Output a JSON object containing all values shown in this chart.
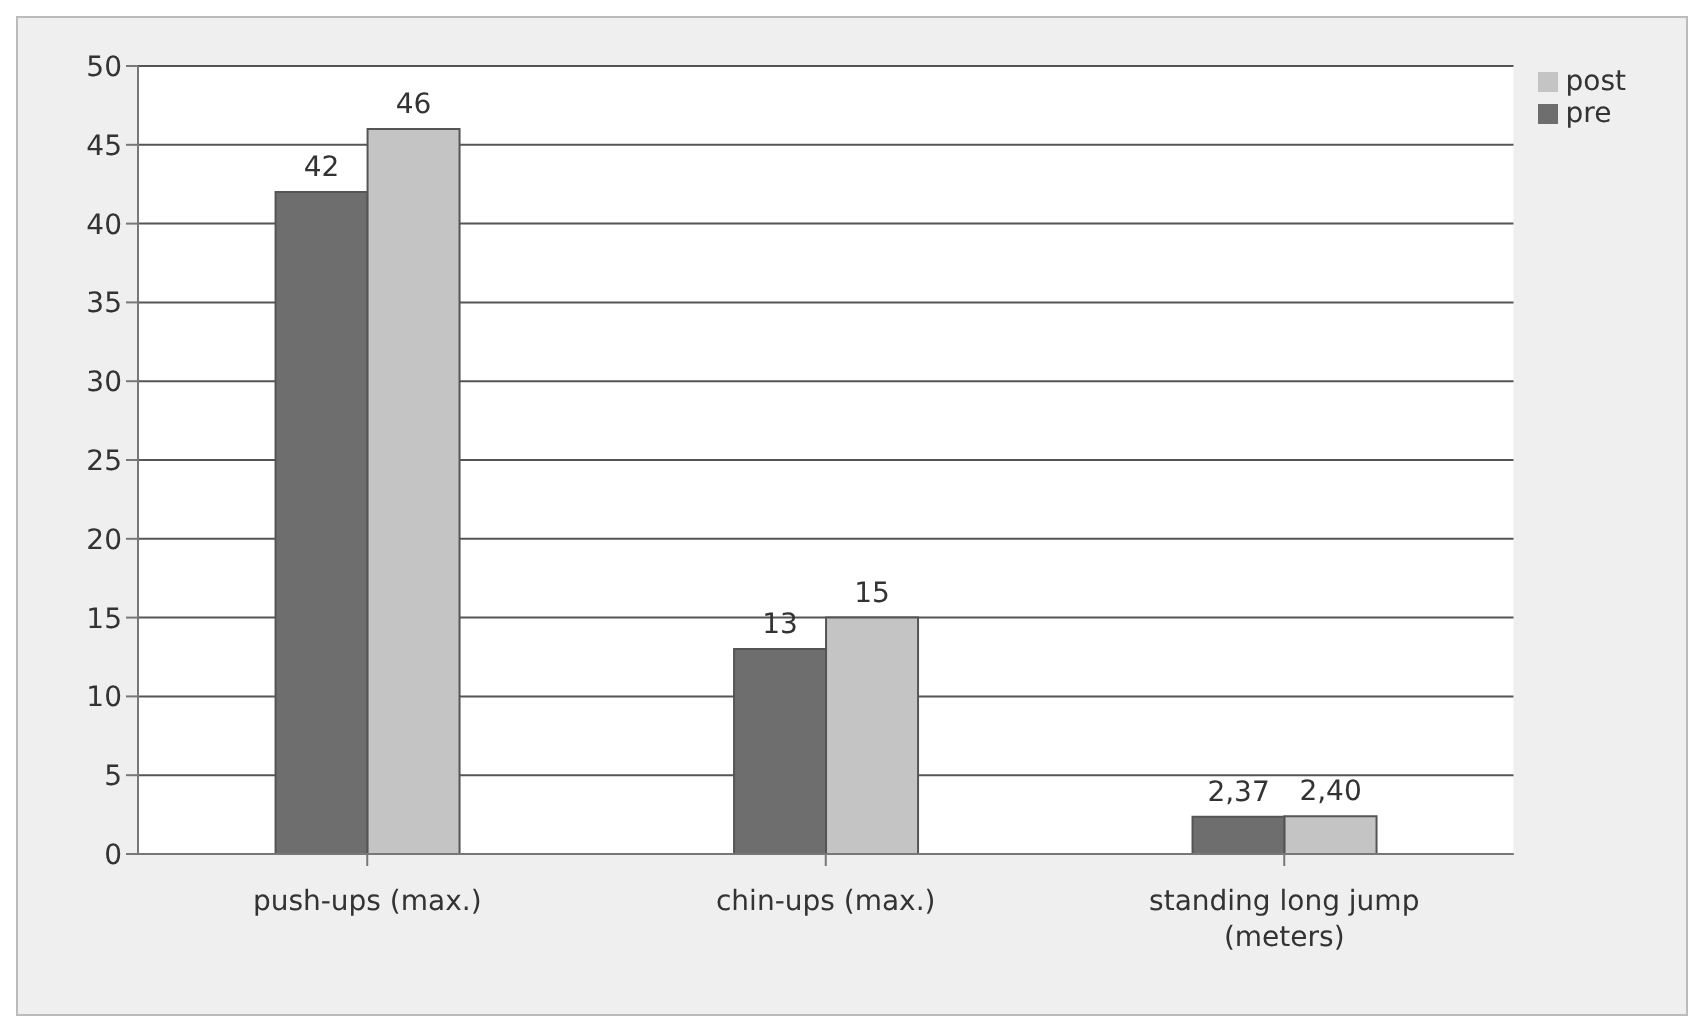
{
  "chart_data": {
    "type": "bar",
    "categories": [
      "push-ups (max.)",
      "chin-ups (max.)",
      "standing long jump (meters)"
    ],
    "series": [
      {
        "name": "pre",
        "color": "#6e6e6e",
        "values": [
          42,
          13,
          2.37
        ],
        "value_labels": [
          "42",
          "13",
          "2,37"
        ]
      },
      {
        "name": "post",
        "color": "#c4c4c4",
        "values": [
          46,
          15,
          2.4
        ],
        "value_labels": [
          "46",
          "15",
          "2,40"
        ]
      }
    ],
    "ylim": [
      0,
      50
    ],
    "yticks": [
      0,
      5,
      10,
      15,
      20,
      25,
      30,
      35,
      40,
      45,
      50
    ],
    "grid": "y",
    "legend": "top right"
  }
}
